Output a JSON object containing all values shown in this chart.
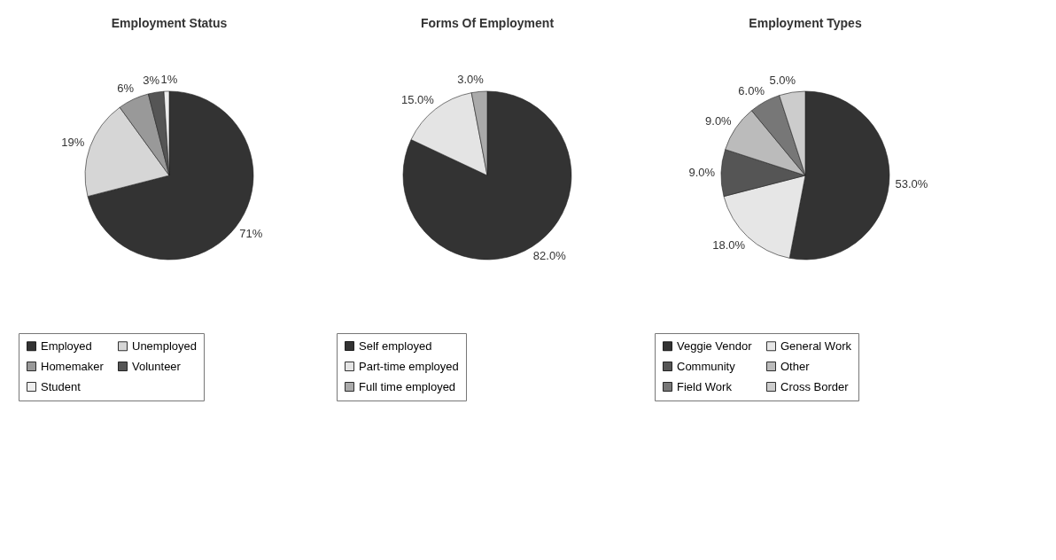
{
  "chart_data": [
    {
      "type": "pie",
      "title": "Employment Status",
      "categories": [
        "Employed",
        "Unemployed",
        "Homemaker",
        "Volunteer",
        "Student"
      ],
      "values": [
        71,
        19,
        6,
        3,
        1
      ],
      "value_labels": [
        "71%",
        "19%",
        "6%",
        "3%",
        "1%"
      ],
      "colors": [
        "#333333",
        "#d6d6d6",
        "#999999",
        "#555555",
        "#eeeeee"
      ],
      "legend": "bottom"
    },
    {
      "type": "pie",
      "title": "Forms Of Employment",
      "categories": [
        "Self employed",
        "Part-time employed",
        "Full time employed"
      ],
      "values": [
        82,
        15,
        3
      ],
      "value_labels": [
        "82.0%",
        "15.0%",
        "3.0%"
      ],
      "colors": [
        "#333333",
        "#e4e4e4",
        "#aaaaaa"
      ],
      "legend": "bottom"
    },
    {
      "type": "pie",
      "title": "Employment Types",
      "categories": [
        "Veggie Vendor",
        "General Work",
        "Community",
        "Other",
        "Field Work",
        "Cross Border"
      ],
      "values": [
        53,
        18,
        9,
        9,
        6,
        5
      ],
      "value_labels": [
        "53.0%",
        "18.0%",
        "9.0%",
        "9.0%",
        "6.0%",
        "5.0%"
      ],
      "colors": [
        "#333333",
        "#e6e6e6",
        "#555555",
        "#bbbbbb",
        "#777777",
        "#cccccc"
      ],
      "legend": "bottom"
    }
  ]
}
